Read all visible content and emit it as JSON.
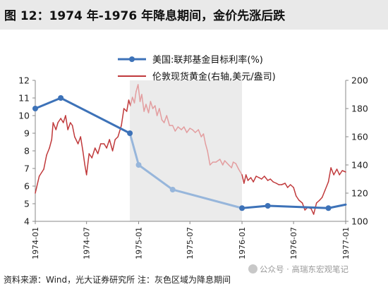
{
  "title": "图 12：1974 年-1976 年降息期间，金价先涨后跌",
  "footer": "资料来源：Wind，光大证券研究所  注：灰色区域为降息期间",
  "watermark": "公众号 · 高瑞东宏观笔记",
  "colors": {
    "fed": "#3d72b8",
    "fed_shaded": "#97b6db",
    "gold": "#c0393b",
    "gold_shaded": "#e39d9f",
    "shade": "#ebebeb"
  },
  "chart_data": {
    "type": "line",
    "x_axis": {
      "range": [
        "1974-01-01",
        "1977-01-01"
      ],
      "ticks": [
        "1974-01",
        "1974-07",
        "1975-01",
        "1975-07",
        "1976-01",
        "1976-07",
        "1977-01"
      ]
    },
    "y_left": {
      "range": [
        4,
        12
      ],
      "ticks": [
        4,
        5,
        6,
        7,
        8,
        9,
        10,
        11,
        12
      ]
    },
    "y_right": {
      "range": [
        100,
        200
      ],
      "ticks": [
        100,
        120,
        140,
        160,
        180,
        200
      ]
    },
    "shaded_period": {
      "start": "1974-12-01",
      "end": "1976-01-01",
      "label": "降息期间"
    },
    "legend_position": "top",
    "series": [
      {
        "name": "美国:联邦基金目标利率(%)",
        "axis": "left",
        "style": "line-marker",
        "points": [
          [
            "1974-01-01",
            10.4
          ],
          [
            "1974-04-01",
            11.0
          ],
          [
            "1974-12-01",
            9.0
          ],
          [
            "1975-01-01",
            7.2
          ],
          [
            "1975-05-01",
            5.8
          ],
          [
            "1976-01-01",
            4.75
          ],
          [
            "1976-04-01",
            4.88
          ],
          [
            "1976-11-01",
            4.75
          ],
          [
            "1977-01-01",
            4.95
          ]
        ]
      },
      {
        "name": "伦敦现货黄金(右轴,美元/盎司)",
        "axis": "right",
        "style": "line",
        "points": [
          [
            "1974-01-01",
            120
          ],
          [
            "1974-01-15",
            132
          ],
          [
            "1974-01-31",
            137
          ],
          [
            "1974-02-10",
            147
          ],
          [
            "1974-02-20",
            152
          ],
          [
            "1974-02-28",
            158
          ],
          [
            "1974-03-05",
            170
          ],
          [
            "1974-03-15",
            165
          ],
          [
            "1974-03-22",
            170
          ],
          [
            "1974-04-01",
            173
          ],
          [
            "1974-04-10",
            170
          ],
          [
            "1974-04-18",
            175
          ],
          [
            "1974-04-26",
            165
          ],
          [
            "1974-05-05",
            170
          ],
          [
            "1974-05-12",
            168
          ],
          [
            "1974-05-20",
            160
          ],
          [
            "1974-06-01",
            155
          ],
          [
            "1974-06-10",
            160
          ],
          [
            "1974-06-18",
            150
          ],
          [
            "1974-06-25",
            140
          ],
          [
            "1974-07-01",
            133
          ],
          [
            "1974-07-10",
            148
          ],
          [
            "1974-07-20",
            145
          ],
          [
            "1974-07-31",
            152
          ],
          [
            "1974-08-10",
            148
          ],
          [
            "1974-08-20",
            155
          ],
          [
            "1974-09-01",
            155
          ],
          [
            "1974-09-10",
            152
          ],
          [
            "1974-09-20",
            158
          ],
          [
            "1974-10-01",
            150
          ],
          [
            "1974-10-10",
            158
          ],
          [
            "1974-10-20",
            160
          ],
          [
            "1974-11-01",
            168
          ],
          [
            "1974-11-10",
            180
          ],
          [
            "1974-11-20",
            178
          ],
          [
            "1974-11-27",
            186
          ],
          [
            "1974-12-03",
            182
          ],
          [
            "1974-12-10",
            188
          ],
          [
            "1974-12-17",
            184
          ],
          [
            "1974-12-23",
            192
          ],
          [
            "1974-12-30",
            197
          ],
          [
            "1975-01-06",
            185
          ],
          [
            "1975-01-12",
            190
          ],
          [
            "1975-01-20",
            178
          ],
          [
            "1975-01-27",
            183
          ],
          [
            "1975-02-05",
            177
          ],
          [
            "1975-02-12",
            185
          ],
          [
            "1975-02-20",
            180
          ],
          [
            "1975-02-28",
            182
          ],
          [
            "1975-03-07",
            175
          ],
          [
            "1975-03-15",
            180
          ],
          [
            "1975-03-24",
            172
          ],
          [
            "1975-04-01",
            170
          ],
          [
            "1975-04-10",
            175
          ],
          [
            "1975-04-20",
            168
          ],
          [
            "1975-05-01",
            168
          ],
          [
            "1975-05-10",
            164
          ],
          [
            "1975-05-20",
            167
          ],
          [
            "1975-06-01",
            165
          ],
          [
            "1975-06-10",
            167
          ],
          [
            "1975-06-20",
            163
          ],
          [
            "1975-07-01",
            166
          ],
          [
            "1975-07-10",
            165
          ],
          [
            "1975-07-20",
            163
          ],
          [
            "1975-07-31",
            165
          ],
          [
            "1975-08-10",
            160
          ],
          [
            "1975-08-18",
            162
          ],
          [
            "1975-08-25",
            155
          ],
          [
            "1975-09-01",
            150
          ],
          [
            "1975-09-10",
            140
          ],
          [
            "1975-09-20",
            142
          ],
          [
            "1975-10-01",
            142
          ],
          [
            "1975-10-15",
            144
          ],
          [
            "1975-10-25",
            140
          ],
          [
            "1975-11-01",
            143
          ],
          [
            "1975-11-15",
            140
          ],
          [
            "1975-11-25",
            138
          ],
          [
            "1975-12-01",
            142
          ],
          [
            "1975-12-10",
            141
          ],
          [
            "1975-12-20",
            137
          ],
          [
            "1976-01-01",
            133
          ],
          [
            "1976-01-08",
            127
          ],
          [
            "1976-01-15",
            133
          ],
          [
            "1976-01-22",
            129
          ],
          [
            "1976-02-01",
            131
          ],
          [
            "1976-02-10",
            128
          ],
          [
            "1976-02-20",
            132
          ],
          [
            "1976-03-01",
            131
          ],
          [
            "1976-03-10",
            130
          ],
          [
            "1976-03-20",
            132
          ],
          [
            "1976-04-01",
            129
          ],
          [
            "1976-04-10",
            130
          ],
          [
            "1976-04-20",
            128
          ],
          [
            "1976-05-01",
            127
          ],
          [
            "1976-05-10",
            126
          ],
          [
            "1976-05-20",
            126
          ],
          [
            "1976-06-01",
            127
          ],
          [
            "1976-06-10",
            124
          ],
          [
            "1976-06-20",
            126
          ],
          [
            "1976-07-01",
            124
          ],
          [
            "1976-07-10",
            118
          ],
          [
            "1976-07-20",
            115
          ],
          [
            "1976-08-01",
            113
          ],
          [
            "1976-08-10",
            108
          ],
          [
            "1976-08-20",
            110
          ],
          [
            "1976-09-01",
            109
          ],
          [
            "1976-09-10",
            105
          ],
          [
            "1976-09-20",
            113
          ],
          [
            "1976-10-01",
            115
          ],
          [
            "1976-10-10",
            117
          ],
          [
            "1976-10-20",
            122
          ],
          [
            "1976-11-01",
            128
          ],
          [
            "1976-11-10",
            138
          ],
          [
            "1976-11-20",
            133
          ],
          [
            "1976-12-01",
            137
          ],
          [
            "1976-12-10",
            133
          ],
          [
            "1976-12-20",
            136
          ],
          [
            "1977-01-01",
            135
          ]
        ]
      }
    ]
  }
}
